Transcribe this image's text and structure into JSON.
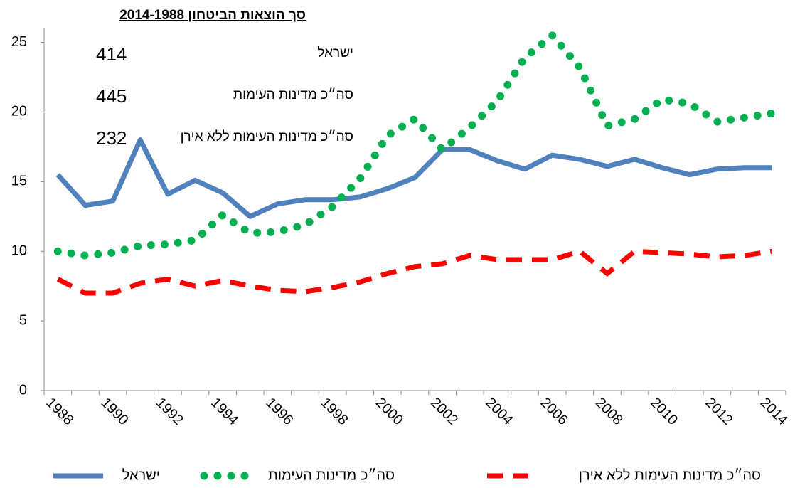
{
  "chart_data": {
    "type": "line",
    "title": "סך הוצאות הביטחון 2014-1988",
    "annotations": [
      {
        "label": "ישראל",
        "value": 414
      },
      {
        "label": "סה״כ מדינות העימות",
        "value": 445
      },
      {
        "label": "סה״כ מדינות העימות ללא אירן",
        "value": 232
      }
    ],
    "categories": [
      "1988",
      null,
      "1990",
      null,
      "1992",
      null,
      "1994",
      null,
      "1996",
      null,
      "1998",
      null,
      "2000",
      null,
      "2002",
      null,
      "2004",
      null,
      "2006",
      null,
      "2008",
      null,
      "2010",
      null,
      "2012",
      null,
      "2014"
    ],
    "series": [
      {
        "name": "ישראל",
        "color": "#4f81bd",
        "style": "solid",
        "values": [
          15.5,
          13.3,
          13.6,
          18.0,
          14.1,
          15.1,
          14.2,
          12.5,
          13.4,
          13.7,
          13.7,
          13.9,
          14.5,
          15.3,
          17.3,
          17.3,
          16.5,
          15.9,
          16.9,
          16.6,
          16.1,
          16.6,
          16.0,
          15.5,
          15.9,
          16.0,
          16.0
        ]
      },
      {
        "name": "סה״כ מדינות העימות",
        "color": "#00b050",
        "style": "dotted",
        "values": [
          10.0,
          9.7,
          9.9,
          10.4,
          10.5,
          10.8,
          12.6,
          11.3,
          11.4,
          11.9,
          13.2,
          15.2,
          18.3,
          19.5,
          17.3,
          18.9,
          20.8,
          23.9,
          25.5,
          23.2,
          19.0,
          19.5,
          20.9,
          20.6,
          19.3,
          19.6,
          19.9
        ]
      },
      {
        "name": "סה״כ מדינות העימות ללא אירן",
        "color": "#ff0000",
        "style": "dashed",
        "values": [
          8.0,
          7.0,
          7.0,
          7.7,
          8.0,
          7.5,
          7.9,
          7.5,
          7.2,
          7.1,
          7.4,
          7.8,
          8.4,
          8.9,
          9.1,
          9.7,
          9.4,
          9.4,
          9.4,
          10.0,
          8.4,
          10.0,
          9.9,
          9.8,
          9.6,
          9.7,
          10.0
        ]
      }
    ],
    "ylim": [
      0,
      26
    ],
    "yticks": [
      0,
      5,
      10,
      15,
      20,
      25
    ],
    "grid": false
  }
}
